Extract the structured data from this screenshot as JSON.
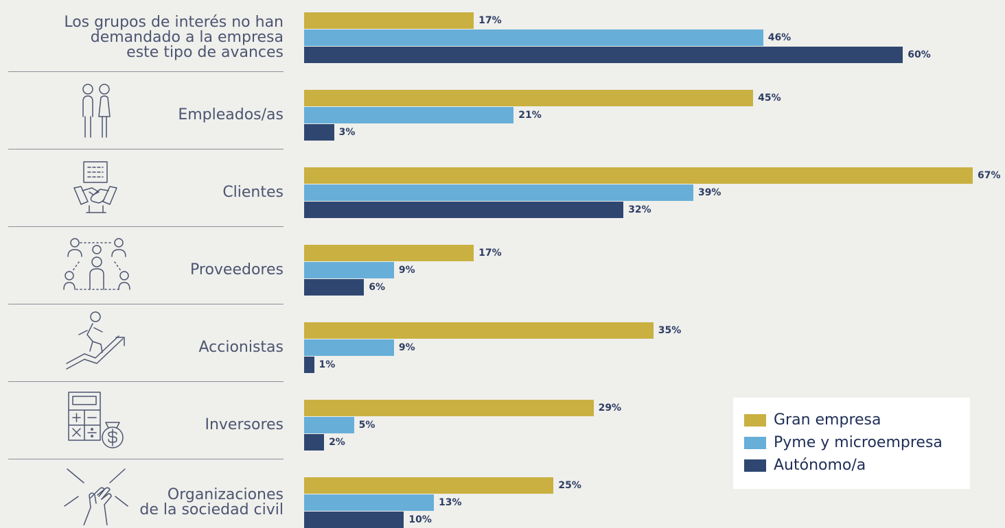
{
  "colors": {
    "gran_empresa": "#c9b040",
    "pyme": "#67aed8",
    "autonomo": "#2f4770"
  },
  "chart_data": {
    "type": "bar",
    "orientation": "horizontal",
    "value_suffix": "%",
    "categories": [
      {
        "label": "Los grupos de interés no han\ndemandado a la empresa\neste tipo de avances",
        "icon": ""
      },
      {
        "label": "Empleados/as",
        "icon": "employees-icon"
      },
      {
        "label": "Clientes",
        "icon": "handshake-icon"
      },
      {
        "label": "Proveedores",
        "icon": "suppliers-network-icon"
      },
      {
        "label": "Accionistas",
        "icon": "runner-growth-icon"
      },
      {
        "label": "Inversores",
        "icon": "calculator-money-icon"
      },
      {
        "label": "Organizaciones\nde la sociedad civil",
        "icon": "joined-hands-icon"
      }
    ],
    "series": [
      {
        "name": "Gran empresa",
        "values": [
          17,
          45,
          67,
          17,
          35,
          29,
          25
        ]
      },
      {
        "name": "Pyme y microempresa",
        "values": [
          46,
          21,
          39,
          9,
          9,
          5,
          13
        ]
      },
      {
        "name": "Autónomo/a",
        "values": [
          60,
          3,
          32,
          6,
          1,
          2,
          10
        ]
      }
    ],
    "xlim": [
      0,
      67
    ],
    "grid": false,
    "legend_position": "bottom-right"
  }
}
